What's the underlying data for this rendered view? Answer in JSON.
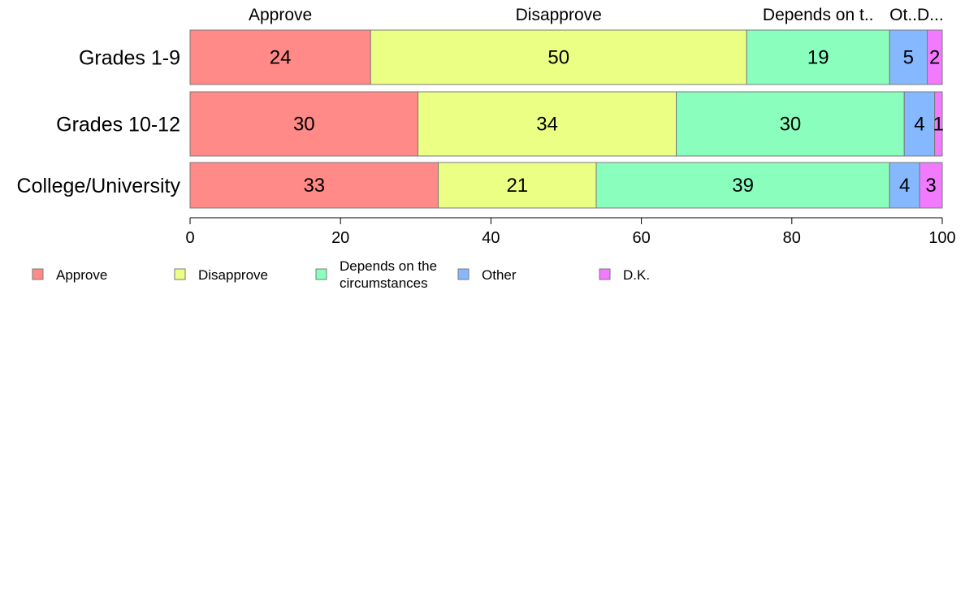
{
  "chart_data": {
    "type": "bar",
    "orientation": "horizontal",
    "stacked": true,
    "categories": [
      "Grades 1-9",
      "Grades 10-12",
      "College/University"
    ],
    "series": [
      {
        "name": "Approve",
        "legend_label": [
          "Approve"
        ],
        "column_heading": "Approve",
        "color": "#ff8a87",
        "values": [
          24,
          30,
          33
        ]
      },
      {
        "name": "Disapprove",
        "legend_label": [
          "Disapprove"
        ],
        "column_heading": "Disapprove",
        "color": "#ecff85",
        "values": [
          50,
          34,
          21
        ]
      },
      {
        "name": "Depends on the circumstances",
        "legend_label": [
          "Depends on the",
          "circumstances"
        ],
        "column_heading": "Depends on t..",
        "color": "#8affbd",
        "values": [
          19,
          30,
          39
        ]
      },
      {
        "name": "Other",
        "legend_label": [
          "Other"
        ],
        "column_heading": "Ot..",
        "color": "#85b8ff",
        "values": [
          5,
          4,
          4
        ]
      },
      {
        "name": "D.K.",
        "legend_label": [
          "D.K."
        ],
        "column_heading": "D...",
        "color": "#f27aff",
        "values": [
          2,
          1,
          3
        ]
      }
    ],
    "xlim": [
      0,
      100
    ],
    "xticks": [
      0,
      20,
      40,
      60,
      80,
      100
    ],
    "grid": false,
    "legend_position": "bottom"
  }
}
